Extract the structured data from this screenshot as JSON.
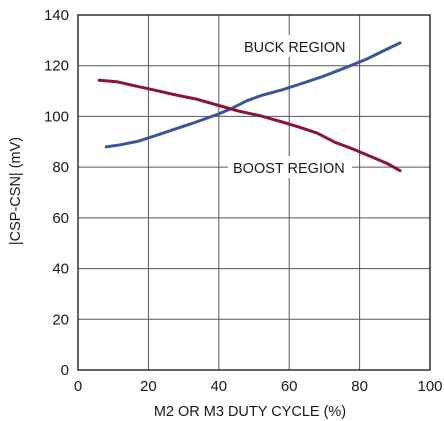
{
  "chart_data": {
    "type": "line",
    "xlabel": "M2 OR M3 DUTY CYCLE (%)",
    "ylabel": "|CSP-CSN| (mV)",
    "xlim": [
      0,
      100
    ],
    "ylim": [
      0,
      140
    ],
    "xticks": [
      0,
      20,
      40,
      60,
      80,
      100
    ],
    "yticks": [
      0,
      20,
      40,
      60,
      80,
      100,
      120,
      140
    ],
    "grid": true,
    "series": [
      {
        "name": "BUCK REGION",
        "color": "#3a559a",
        "x": [
          8,
          12,
          17,
          22,
          28,
          34,
          40,
          44,
          48,
          52,
          58,
          64,
          70,
          76,
          82,
          87,
          91.5
        ],
        "y": [
          88,
          88.8,
          90.2,
          92.4,
          95.2,
          98,
          101,
          103.4,
          106.2,
          108.2,
          110.5,
          113.2,
          116,
          119.2,
          122.6,
          126,
          129
        ]
      },
      {
        "name": "BOOST REGION",
        "color": "#8a1538",
        "x": [
          6,
          11,
          16,
          22,
          28,
          34,
          40,
          46,
          52,
          58,
          63,
          68,
          73,
          78,
          83,
          88,
          91.5
        ],
        "y": [
          114.3,
          113.7,
          112.1,
          110.3,
          108.4,
          106.7,
          104.3,
          102,
          100.2,
          97.8,
          95.7,
          93.4,
          89.8,
          87.2,
          84.3,
          81.3,
          78.6
        ]
      }
    ],
    "annotations": [
      {
        "text": "BUCK REGION",
        "series": "BUCK REGION"
      },
      {
        "text": "BOOST REGION",
        "series": "BOOST REGION"
      }
    ]
  }
}
